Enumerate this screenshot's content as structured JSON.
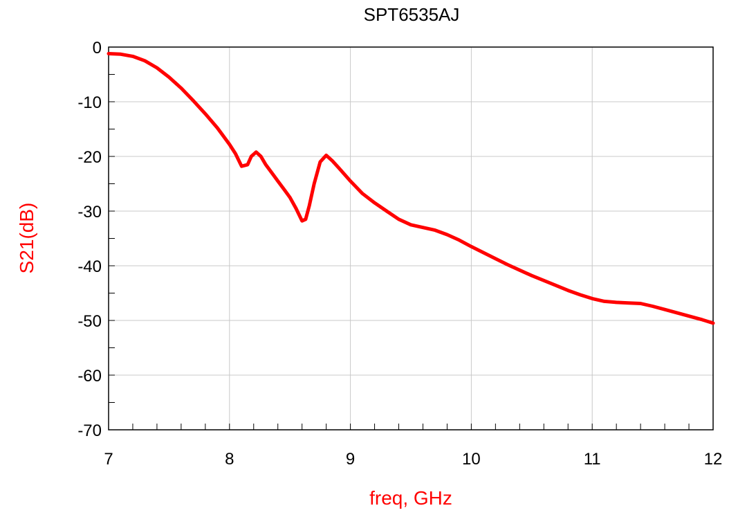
{
  "chart_data": {
    "type": "line",
    "title": "SPT6535AJ",
    "xlabel": "freq, GHz",
    "ylabel": "S21(dB)",
    "xlim": [
      7,
      12
    ],
    "ylim": [
      -70,
      0
    ],
    "x_ticks": [
      7,
      8,
      9,
      10,
      11,
      12
    ],
    "y_ticks": [
      0,
      -10,
      -20,
      -30,
      -40,
      -50,
      -60,
      -70
    ],
    "x_tick_labels": [
      "7",
      "8",
      "9",
      "10",
      "11",
      "12"
    ],
    "y_tick_labels": [
      "0",
      "-10",
      "-20",
      "-30",
      "-40",
      "-50",
      "-60",
      "-70"
    ],
    "grid": true,
    "series": [
      {
        "color": "#ff0000",
        "x": [
          7.0,
          7.1,
          7.2,
          7.3,
          7.4,
          7.5,
          7.6,
          7.7,
          7.8,
          7.9,
          8.0,
          8.05,
          8.1,
          8.15,
          8.18,
          8.22,
          8.26,
          8.3,
          8.35,
          8.4,
          8.45,
          8.5,
          8.55,
          8.6,
          8.63,
          8.66,
          8.7,
          8.75,
          8.8,
          8.85,
          8.9,
          9.0,
          9.1,
          9.2,
          9.3,
          9.4,
          9.5,
          9.6,
          9.7,
          9.8,
          9.9,
          10.0,
          10.1,
          10.2,
          10.3,
          10.4,
          10.5,
          10.6,
          10.7,
          10.8,
          10.9,
          11.0,
          11.1,
          11.2,
          11.3,
          11.4,
          11.5,
          11.6,
          11.7,
          11.8,
          11.9,
          12.0
        ],
        "y": [
          -1.2,
          -1.3,
          -1.7,
          -2.5,
          -3.8,
          -5.5,
          -7.5,
          -9.8,
          -12.2,
          -14.8,
          -17.8,
          -19.5,
          -21.8,
          -21.5,
          -20.0,
          -19.2,
          -20.0,
          -21.5,
          -23.0,
          -24.5,
          -26.0,
          -27.5,
          -29.5,
          -31.8,
          -31.5,
          -29.0,
          -25.0,
          -21.0,
          -19.8,
          -20.8,
          -22.0,
          -24.5,
          -26.8,
          -28.5,
          -30.0,
          -31.5,
          -32.5,
          -33.0,
          -33.5,
          -34.3,
          -35.3,
          -36.5,
          -37.6,
          -38.7,
          -39.8,
          -40.8,
          -41.8,
          -42.7,
          -43.6,
          -44.5,
          -45.3,
          -46.0,
          -46.5,
          -46.7,
          -46.8,
          -46.9,
          -47.4,
          -48.0,
          -48.6,
          -49.2,
          -49.8,
          -50.5
        ]
      }
    ]
  }
}
